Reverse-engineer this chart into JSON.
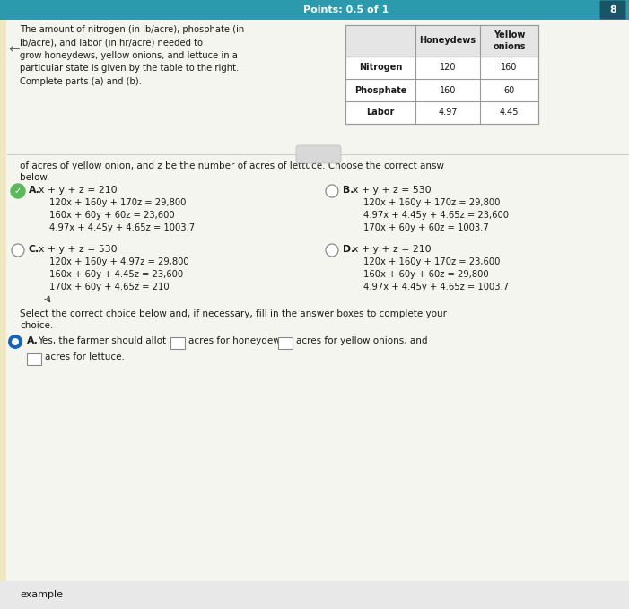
{
  "header_bg": "#2b9aad",
  "header_text": "Points: 0.5 of 1",
  "problem_text": "The amount of nitrogen (in lb/acre), phosphate (in\nlb/acre), and labor (in hr/acre) needed to\ngrow honeydews, yellow onions, and lettuce in a\nparticular state is given by the table to the right.\nComplete parts (a) and (b).",
  "table_rows": [
    [
      "Nitrogen",
      "120",
      "160"
    ],
    [
      "Phosphate",
      "160",
      "60"
    ],
    [
      "Labor",
      "4.97",
      "4.45"
    ]
  ],
  "continuation_text": "of acres of yellow onion, and z be the number of acres of lettuce. Choose the correct answ",
  "continuation_text2": "below.",
  "option_A_lines": [
    "x + y + z = 210",
    "120x + 160y + 170z = 29,800",
    "160x + 60y + 60z = 23,600",
    "4.97x + 4.45y + 4.65z = 1003.7"
  ],
  "option_B_lines": [
    "x + y + z = 530",
    "120x + 160y + 170z = 29,800",
    "4.97x + 4.45y + 4.65z = 23,600",
    "170x + 60y + 60z = 1003.7"
  ],
  "option_C_lines": [
    "x + y + z = 530",
    "120x + 160y + 4.97z = 29,800",
    "160x + 60y + 4.45z = 23,600",
    "170x + 60y + 4.65z = 210"
  ],
  "option_D_lines": [
    "x + y + z = 210",
    "120x + 160y + 170z = 23,600",
    "160x + 60y + 60z = 29,800",
    "4.97x + 4.45y + 4.65z = 1003.7"
  ],
  "part_b_intro": "Select the correct choice below and, if necessary, fill in the answer boxes to complete your",
  "part_b_intro2": "choice.",
  "white_bg": "#f5f5f0",
  "dark_text": "#1a1a1a",
  "separator_color": "#cccccc",
  "table_border": "#999999",
  "left_stripe_color": "#f0e8c0"
}
